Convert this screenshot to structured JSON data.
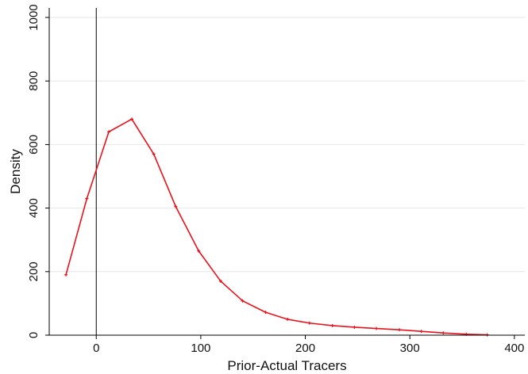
{
  "chart_data": {
    "type": "line",
    "xlabel": "Prior-Actual Tracers",
    "ylabel": "Density",
    "xlim": [
      -45,
      410
    ],
    "ylim": [
      0,
      1030
    ],
    "xticks": [
      0,
      100,
      200,
      300,
      400
    ],
    "yticks": [
      0,
      200,
      400,
      600,
      800,
      1000
    ],
    "grid": "horizontal",
    "reference_line_x": 0,
    "line_color": "#e8121b",
    "series": [
      {
        "x": [
          -29,
          -9,
          12,
          34,
          55,
          76,
          98,
          119,
          140,
          162,
          183,
          204,
          226,
          247,
          268,
          290,
          311,
          332,
          354,
          374
        ],
        "y": [
          190,
          430,
          640,
          680,
          570,
          405,
          265,
          170,
          108,
          72,
          50,
          38,
          30,
          25,
          21,
          17,
          12,
          7,
          3,
          1
        ]
      }
    ]
  }
}
